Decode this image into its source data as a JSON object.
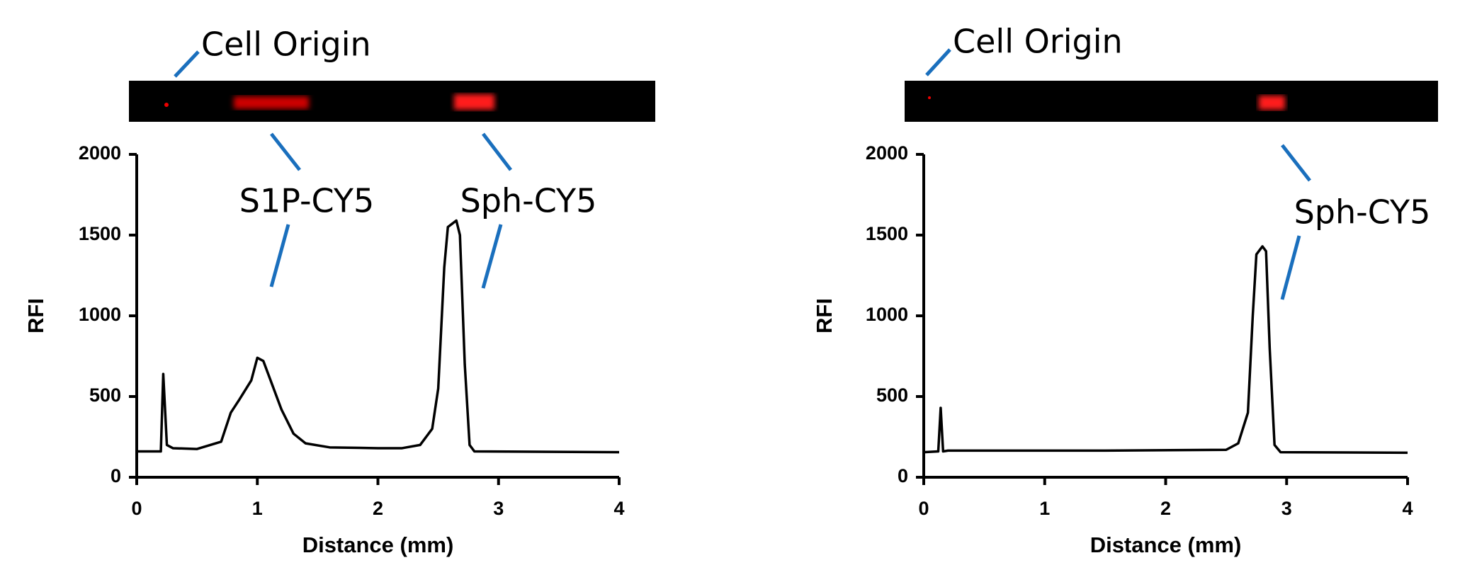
{
  "chart_data": [
    {
      "type": "line",
      "x_label": "Distance (mm)",
      "y_label": "RFI",
      "xlim": [
        0,
        4
      ],
      "ylim": [
        0,
        2000
      ],
      "xticks": [
        0,
        1,
        2,
        3,
        4
      ],
      "yticks": [
        0,
        500,
        1000,
        1500,
        2000
      ],
      "color": "#000000",
      "annotations": [
        "Cell Origin",
        "S1P-CY5",
        "Sph-CY5"
      ],
      "x": [
        0,
        0.2,
        0.22,
        0.25,
        0.3,
        0.5,
        0.7,
        0.78,
        0.85,
        0.95,
        1.0,
        1.05,
        1.1,
        1.2,
        1.3,
        1.4,
        1.6,
        2.0,
        2.2,
        2.35,
        2.45,
        2.5,
        2.55,
        2.58,
        2.65,
        2.68,
        2.72,
        2.76,
        2.8,
        4.0
      ],
      "values": [
        160,
        160,
        640,
        200,
        180,
        175,
        220,
        400,
        480,
        600,
        740,
        720,
        620,
        420,
        270,
        210,
        185,
        180,
        180,
        200,
        300,
        550,
        1300,
        1550,
        1590,
        1500,
        700,
        200,
        160,
        155
      ]
    },
    {
      "type": "line",
      "x_label": "Distance (mm)",
      "y_label": "RFI",
      "xlim": [
        0,
        4
      ],
      "ylim": [
        0,
        2000
      ],
      "xticks": [
        0,
        1,
        2,
        3,
        4
      ],
      "yticks": [
        0,
        500,
        1000,
        1500,
        2000
      ],
      "color": "#000000",
      "annotations": [
        "Cell Origin",
        "Sph-CY5"
      ],
      "x": [
        0,
        0.12,
        0.14,
        0.16,
        0.2,
        1.5,
        2.5,
        2.6,
        2.68,
        2.72,
        2.75,
        2.8,
        2.83,
        2.86,
        2.9,
        2.95,
        4.0
      ],
      "values": [
        155,
        160,
        430,
        160,
        165,
        165,
        170,
        210,
        400,
        1000,
        1380,
        1430,
        1400,
        800,
        200,
        155,
        152
      ]
    }
  ]
}
